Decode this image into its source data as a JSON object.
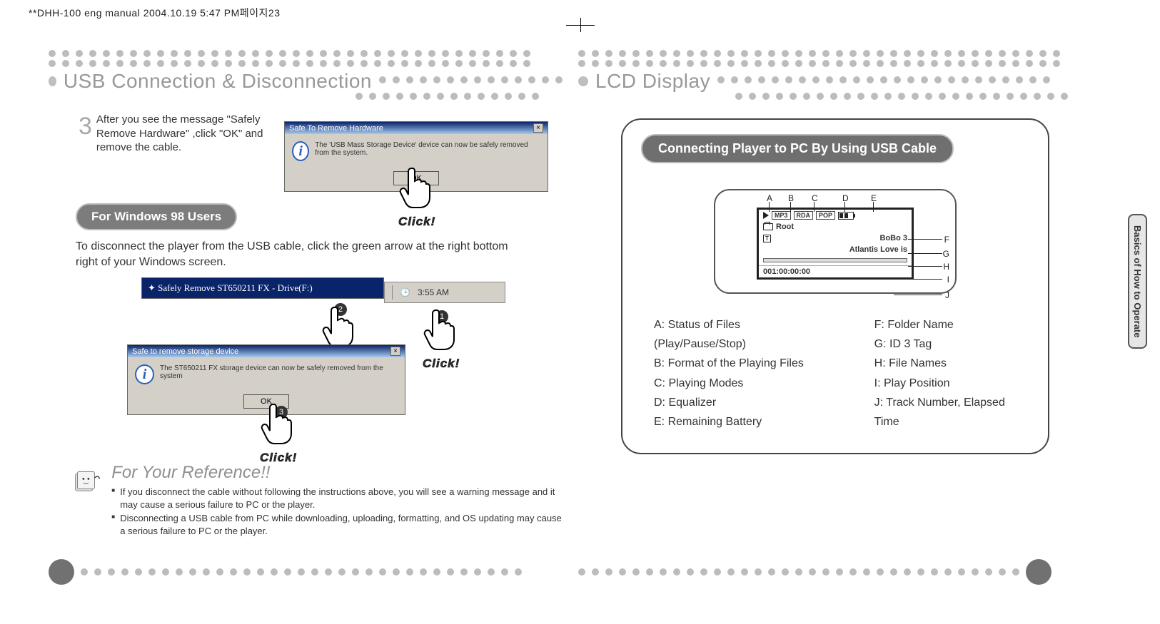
{
  "header": "**DHH-100 eng manual  2004.10.19 5:47 PM페이지23",
  "left": {
    "title": "USB Connection & Disconnection",
    "step_num": "3",
    "step_text": "After you see the message \"Safely Remove Hardware\" ,click \"OK\" and remove the cable.",
    "pill": "For Windows 98 Users",
    "body": "To disconnect the player from the USB cable, click the green arrow at the right bottom right of your Windows screen.",
    "win1_title": "Safe To Remove Hardware",
    "win1_msg": "The 'USB Mass Storage Device' device can now be safely removed from the system.",
    "ok": "OK",
    "remove_line": "Safely Remove ST650211 FX - Drive(F:)",
    "clock": "3:55 AM",
    "win2_title": "Safe to remove storage device",
    "win2_msg": "The ST650211 FX storage device can now be safely removed from the system",
    "click": "Click!",
    "ref_title": "For Your Reference!!",
    "ref_items": [
      "If you disconnect the cable without following the instructions above, you will see a warning message and it may cause a serious failure to PC or the player.",
      "Disconnecting a USB cable from PC while downloading, uploading, formatting, and OS updating may cause a serious failure to PC or the player."
    ]
  },
  "right": {
    "title": "LCD Display",
    "pill": "Connecting Player to PC By Using USB Cable",
    "top_labels": [
      "A",
      "B",
      "C",
      "D",
      "E"
    ],
    "side_labels": [
      "F",
      "G",
      "H",
      "I",
      "J"
    ],
    "lcd": {
      "tags": [
        "MP3",
        "RDA",
        "POP"
      ],
      "folder": "Root",
      "id3": "BoBo 3",
      "file": "Atlantis Love is",
      "track": "001:00:00:00"
    },
    "legend_left": [
      "A:  Status of Files (Play/Pause/Stop)",
      "B:  Format of the Playing Files",
      "C:  Playing Modes",
      "D:  Equalizer",
      "E:  Remaining Battery"
    ],
    "legend_right": [
      "F:  Folder Name",
      "G:  ID 3 Tag",
      "H: File Names",
      "I: Play Position",
      "J: Track Number, Elapsed Time"
    ],
    "tab": "Basics of How to Operate"
  },
  "colors": {
    "dot": "#bcbcbc",
    "dot_dark": "#6f6f6f",
    "title": "#989898",
    "pill": "#7c7c7c"
  }
}
